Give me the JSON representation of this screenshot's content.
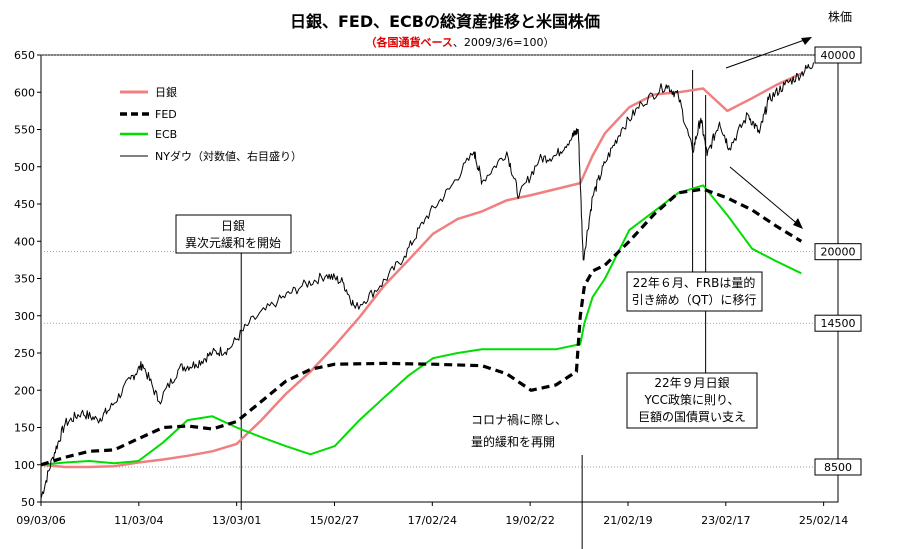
{
  "chart_data": {
    "type": "line",
    "title": "日銀、FED、ECBの総資産推移と米国株価",
    "subtitle_red": "（各国通貨ベース",
    "subtitle_black": "、2009/3/6=100）",
    "right_axis_title": "株価",
    "ylim": [
      50,
      650
    ],
    "y_ticks": [
      50,
      100,
      150,
      200,
      250,
      300,
      350,
      400,
      450,
      500,
      550,
      600,
      650
    ],
    "xlim": [
      "2009-03-06",
      "2025-06-01"
    ],
    "x_ticks": [
      {
        "date": "2009-03-06",
        "label": "09/03/06"
      },
      {
        "date": "2011-03-04",
        "label": "11/03/04"
      },
      {
        "date": "2013-03-01",
        "label": "13/03/01"
      },
      {
        "date": "2015-02-27",
        "label": "15/02/27"
      },
      {
        "date": "2017-02-24",
        "label": "17/02/24"
      },
      {
        "date": "2019-02-22",
        "label": "19/02/22"
      },
      {
        "date": "2021-02-19",
        "label": "21/02/19"
      },
      {
        "date": "2023-02-17",
        "label": "23/02/17"
      },
      {
        "date": "2025-02-14",
        "label": "25/02/14"
      }
    ],
    "right_levels": [
      {
        "label": "40000",
        "value": 650
      },
      {
        "label": "20000",
        "value": 386
      },
      {
        "label": "14500",
        "value": 290
      },
      {
        "label": "8500",
        "value": 97
      }
    ],
    "legend": [
      "日銀",
      "FED",
      "ECB",
      "NYダウ（対数値、右目盛り）"
    ],
    "series": [
      {
        "name": "日銀",
        "color": "#f08080",
        "x": [
          "2009-03-06",
          "2009-09-01",
          "2010-03-01",
          "2010-09-01",
          "2011-03-01",
          "2011-09-01",
          "2012-03-01",
          "2012-09-01",
          "2013-03-01",
          "2013-09-01",
          "2014-03-01",
          "2014-09-01",
          "2015-03-01",
          "2015-09-01",
          "2016-03-01",
          "2016-09-01",
          "2017-03-01",
          "2017-09-01",
          "2018-03-01",
          "2018-09-01",
          "2019-03-01",
          "2019-09-01",
          "2020-03-01",
          "2020-06-01",
          "2020-09-01",
          "2021-03-01",
          "2021-09-01",
          "2022-03-01",
          "2022-09-01",
          "2023-03-01",
          "2023-09-01",
          "2024-03-01",
          "2024-09-01"
        ],
        "values": [
          100,
          97,
          97,
          98,
          103,
          107,
          112,
          118,
          128,
          160,
          195,
          225,
          260,
          298,
          340,
          375,
          410,
          430,
          440,
          455,
          462,
          470,
          478,
          515,
          545,
          580,
          597,
          600,
          605,
          575,
          592,
          610,
          625
        ]
      },
      {
        "name": "FED",
        "color": "#000000",
        "x": [
          "2009-03-06",
          "2009-09-01",
          "2010-03-01",
          "2010-09-01",
          "2011-03-01",
          "2011-09-01",
          "2012-03-01",
          "2012-09-01",
          "2013-03-01",
          "2013-09-01",
          "2014-03-01",
          "2014-09-01",
          "2015-03-01",
          "2016-03-01",
          "2017-03-01",
          "2018-03-01",
          "2018-09-01",
          "2019-03-01",
          "2019-09-01",
          "2020-02-01",
          "2020-03-01",
          "2020-04-01",
          "2020-06-01",
          "2020-09-01",
          "2021-03-01",
          "2021-09-01",
          "2022-03-01",
          "2022-09-01",
          "2023-03-01",
          "2023-09-01",
          "2024-03-01",
          "2024-09-01"
        ],
        "values": [
          100,
          110,
          118,
          120,
          135,
          150,
          152,
          148,
          158,
          185,
          212,
          228,
          235,
          236,
          235,
          233,
          222,
          200,
          207,
          225,
          300,
          340,
          360,
          368,
          400,
          436,
          465,
          470,
          458,
          442,
          420,
          400
        ]
      },
      {
        "name": "ECB",
        "color": "#00dd00",
        "x": [
          "2009-03-06",
          "2009-09-01",
          "2010-03-01",
          "2010-09-01",
          "2011-03-01",
          "2011-09-01",
          "2012-03-01",
          "2012-09-01",
          "2013-03-01",
          "2013-09-01",
          "2014-03-01",
          "2014-09-01",
          "2015-03-01",
          "2015-09-01",
          "2016-03-01",
          "2016-09-01",
          "2017-03-01",
          "2017-09-01",
          "2018-03-01",
          "2018-09-01",
          "2019-03-01",
          "2019-09-01",
          "2020-03-01",
          "2020-04-01",
          "2020-06-01",
          "2020-09-01",
          "2021-03-01",
          "2021-09-01",
          "2022-03-01",
          "2022-09-01",
          "2023-03-01",
          "2023-09-01",
          "2024-03-01",
          "2024-09-01"
        ],
        "values": [
          100,
          103,
          105,
          102,
          105,
          130,
          160,
          165,
          150,
          137,
          125,
          114,
          125,
          160,
          190,
          220,
          243,
          250,
          255,
          255,
          255,
          255,
          262,
          290,
          325,
          350,
          415,
          440,
          465,
          475,
          435,
          390,
          373,
          357
        ]
      },
      {
        "name": "NYダウ（対数値、右目盛り）",
        "color": "#000000",
        "x": [
          "2009-03-06",
          "2009-06-01",
          "2009-09-01",
          "2010-01-01",
          "2010-05-01",
          "2010-08-01",
          "2011-01-01",
          "2011-04-01",
          "2011-08-01",
          "2012-01-01",
          "2012-05-01",
          "2012-09-01",
          "2013-01-01",
          "2013-06-01",
          "2014-01-01",
          "2014-07-01",
          "2015-01-01",
          "2015-05-01",
          "2015-08-01",
          "2016-02-01",
          "2016-08-01",
          "2017-01-01",
          "2017-07-01",
          "2018-01-01",
          "2018-03-01",
          "2018-09-01",
          "2018-12-01",
          "2019-05-01",
          "2019-09-01",
          "2020-01-01",
          "2020-02-15",
          "2020-03-23",
          "2020-06-01",
          "2020-09-01",
          "2021-01-01",
          "2021-06-01",
          "2021-12-01",
          "2022-03-01",
          "2022-06-15",
          "2022-08-15",
          "2022-10-01",
          "2023-01-01",
          "2023-03-15",
          "2023-08-01",
          "2023-10-25",
          "2024-01-01",
          "2024-05-01",
          "2024-09-01",
          "2024-12-01"
        ],
        "values": [
          55,
          110,
          155,
          170,
          160,
          175,
          215,
          235,
          185,
          230,
          235,
          250,
          255,
          290,
          320,
          340,
          355,
          345,
          310,
          340,
          380,
          430,
          470,
          520,
          480,
          520,
          460,
          510,
          515,
          540,
          550,
          375,
          460,
          505,
          550,
          585,
          610,
          595,
          520,
          565,
          515,
          560,
          525,
          570,
          545,
          590,
          610,
          625,
          640
        ]
      }
    ],
    "annotations": [
      {
        "text": [
          "日銀",
          "異次元緩和を開始"
        ],
        "date": "2013-04-04"
      },
      {
        "text": [
          "コロナ禍に際し、",
          "量的緩和を再開"
        ],
        "date": "2020-03-15"
      },
      {
        "text": [
          "22年６月、FRBは量的",
          "引き締め（QT）に移行"
        ],
        "date": "2022-06-15"
      },
      {
        "text": [
          "22年９月日銀",
          "YCC政策に則り、",
          "巨額の国債買い支え"
        ],
        "date": "2022-09-20"
      }
    ]
  }
}
